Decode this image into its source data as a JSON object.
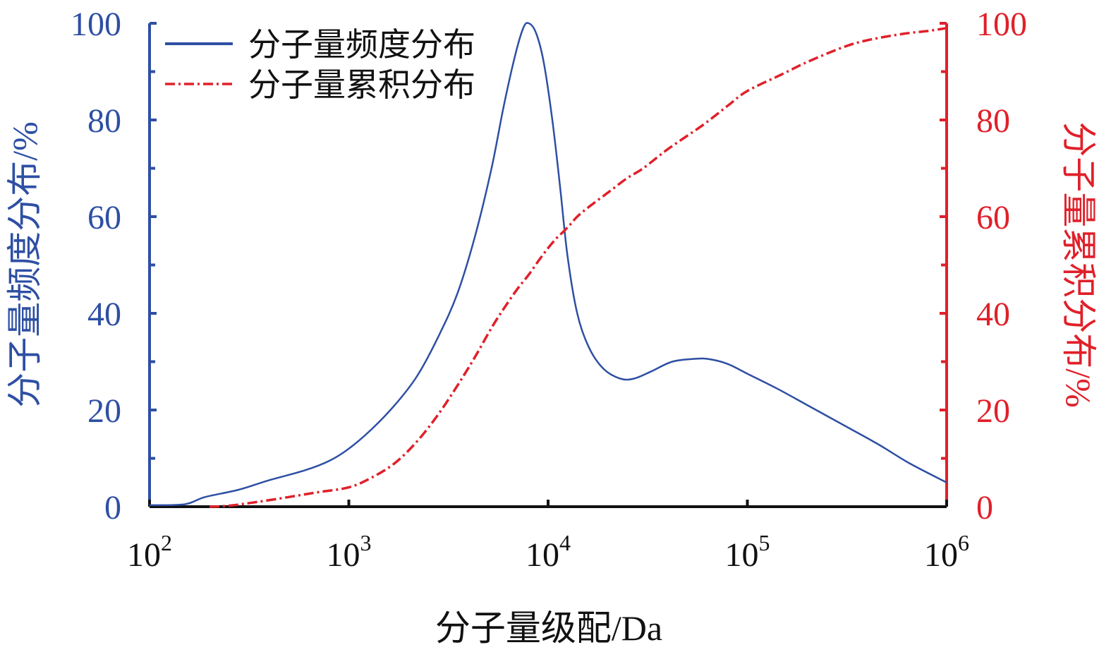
{
  "chart_data": {
    "type": "line",
    "x_scale": "log",
    "xlim": [
      100,
      1000000
    ],
    "xlabel": "分子量级配/Da",
    "x_ticks": [
      {
        "value": 100,
        "base": "10",
        "exp": "2"
      },
      {
        "value": 1000,
        "base": "10",
        "exp": "3"
      },
      {
        "value": 10000,
        "base": "10",
        "exp": "4"
      },
      {
        "value": 100000,
        "base": "10",
        "exp": "5"
      },
      {
        "value": 1000000,
        "base": "10",
        "exp": "6"
      }
    ],
    "y_left": {
      "label": "分子量频度分布/%",
      "lim": [
        0,
        100
      ],
      "ticks": [
        "0",
        "20",
        "40",
        "60",
        "80",
        "100"
      ],
      "color": "#2e4fa3"
    },
    "y_right": {
      "label": "分子量累积分布/%",
      "lim": [
        0,
        100
      ],
      "ticks": [
        "0",
        "20",
        "40",
        "60",
        "80",
        "100"
      ],
      "color": "#e0202a"
    },
    "legend_position": "top-left",
    "series": [
      {
        "name": "分子量频度分布",
        "axis": "left",
        "style": "solid",
        "color": "#2e4fa3",
        "x": [
          100,
          150,
          190,
          280,
          400,
          600,
          800,
          1000,
          1300,
          1700,
          2200,
          2800,
          3500,
          4300,
          5200,
          6000,
          6800,
          7500,
          8000,
          8700,
          9500,
          10500,
          11500,
          12500,
          14000,
          16000,
          19000,
          23000,
          27000,
          33000,
          42000,
          55000,
          65000,
          80000,
          100000,
          140000,
          200000,
          300000,
          450000,
          650000,
          1000000
        ],
        "y": [
          0.3,
          0.5,
          2.0,
          3.5,
          5.5,
          7.5,
          9.5,
          12,
          16,
          21,
          27,
          35,
          44,
          56,
          70,
          83,
          93,
          99,
          100,
          98,
          92,
          80,
          66,
          52,
          40,
          33,
          28.5,
          26.5,
          26.5,
          28,
          30,
          30.6,
          30.5,
          29.5,
          27.5,
          24.5,
          21,
          17,
          13,
          9,
          5
        ]
      },
      {
        "name": "分子量累积分布",
        "axis": "right",
        "style": "dashdot",
        "color": "#e0202a",
        "x": [
          200,
          250,
          350,
          500,
          700,
          1000,
          1300,
          1700,
          2200,
          2800,
          3500,
          4300,
          5200,
          6000,
          7000,
          8000,
          9000,
          10000,
          11000,
          12000,
          13000,
          14000,
          16000,
          20000,
          25000,
          30000,
          40000,
          60000,
          80000,
          100000,
          150000,
          200000,
          300000,
          400000,
          600000,
          800000,
          1000000
        ],
        "y": [
          0,
          0.2,
          1.0,
          2.0,
          3.0,
          4.0,
          6.0,
          9.0,
          13.5,
          19,
          25,
          31,
          37,
          41,
          45,
          48,
          51,
          53.5,
          55.5,
          57,
          58.5,
          60,
          62,
          65,
          68,
          70,
          74,
          79,
          83,
          86,
          89.5,
          92,
          95,
          96.5,
          97.8,
          98.4,
          99
        ]
      }
    ]
  }
}
